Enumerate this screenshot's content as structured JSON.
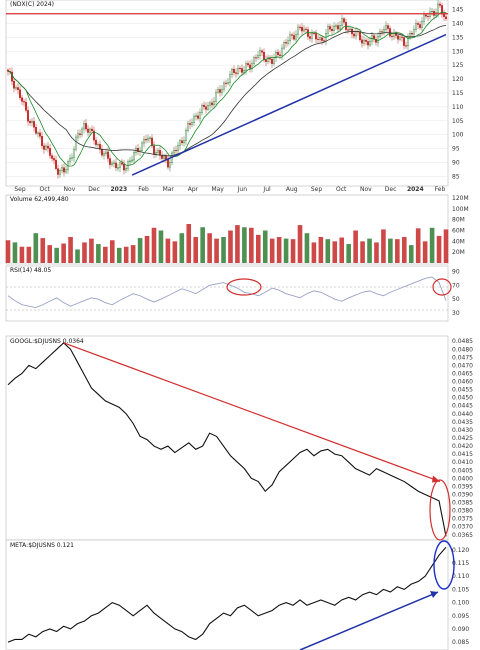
{
  "panels": {
    "price": {
      "top_label": "(NDX(C) 2024)",
      "y_ticks": [
        "145",
        "140",
        "135",
        "130",
        "125",
        "120",
        "115",
        "110",
        "105",
        "100",
        "95",
        "90",
        "85"
      ]
    },
    "x_axis": {
      "ticks": [
        "Sep",
        "Oct",
        "Nov",
        "Dec",
        "2023",
        "Feb",
        "Mar",
        "Apr",
        "May",
        "Jun",
        "Jul",
        "Aug",
        "Sep",
        "Oct",
        "Nov",
        "Dec",
        "2024",
        "Feb"
      ]
    },
    "volume": {
      "label": "Volume 62,499,480",
      "y_ticks": [
        "120M",
        "100M",
        "80M",
        "60M",
        "40M",
        "20M"
      ]
    },
    "rsi": {
      "label": "RSI(14) 48.05",
      "y_ticks": [
        "90",
        "70",
        "50",
        "30"
      ]
    },
    "ratio_googl": {
      "label": "GOOGL:$DJUSNS 0.0364",
      "y_ticks": [
        "0.0485",
        "0.0480",
        "0.0475",
        "0.0470",
        "0.0465",
        "0.0460",
        "0.0455",
        "0.0450",
        "0.0445",
        "0.0440",
        "0.0435",
        "0.0430",
        "0.0425",
        "0.0420",
        "0.0415",
        "0.0410",
        "0.0405",
        "0.0400",
        "0.0395",
        "0.0390",
        "0.0385",
        "0.0380",
        "0.0375",
        "0.0370",
        "0.0365"
      ]
    },
    "ratio_meta": {
      "label": "META:$DJUSNS 0.121",
      "y_ticks": [
        "0.120",
        "0.115",
        "0.110",
        "0.105",
        "0.100",
        "0.095",
        "0.090",
        "0.085"
      ]
    }
  },
  "colors": {
    "up": "#2e7d32",
    "down": "#c62828",
    "ma_fast": "#1b8a2a",
    "ma_slow": "#333333",
    "trend_blue": "#2233aa",
    "trend_red": "#d32f2f",
    "highlight_red": "#d32f2f",
    "highlight_blue": "#1a2fd1",
    "grid": "#e6e6e6"
  },
  "chart_data": [
    {
      "type": "candlestick",
      "title": "",
      "ylim": [
        83,
        147
      ],
      "x": [
        "Sep",
        "Oct",
        "Nov",
        "Dec",
        "2023",
        "Feb",
        "Mar",
        "Apr",
        "May",
        "Jun",
        "Jul",
        "Aug",
        "Sep",
        "Oct",
        "Nov",
        "Dec",
        "2024",
        "Feb"
      ],
      "close_path": [
        122,
        118,
        112,
        106,
        101,
        97,
        93,
        88,
        86,
        92,
        99,
        104,
        100,
        96,
        92,
        90,
        88,
        89,
        92,
        96,
        99,
        95,
        92,
        90,
        94,
        98,
        103,
        107,
        109,
        111,
        114,
        118,
        121,
        124,
        123,
        126,
        129,
        128,
        126,
        130,
        133,
        136,
        138,
        137,
        135,
        134,
        137,
        139,
        140,
        138,
        136,
        134,
        133,
        135,
        138,
        137,
        135,
        133,
        136,
        140,
        142,
        144,
        146,
        141
      ],
      "horizontal_level": 143.5,
      "trendlines": [
        {
          "name": "blue support",
          "from": [
            "2023",
            85.5
          ],
          "to": [
            "Feb",
            136
          ]
        }
      ]
    },
    {
      "type": "bar",
      "title": "Volume 62,499,480",
      "ylim": [
        0,
        120000000
      ],
      "values": [
        42,
        38,
        30,
        30,
        55,
        46,
        33,
        28,
        36,
        48,
        25,
        38,
        45,
        35,
        30,
        42,
        28,
        30,
        33,
        46,
        50,
        65,
        60,
        45,
        40,
        55,
        72,
        48,
        66,
        55,
        45,
        48,
        60,
        70,
        66,
        65,
        52,
        60,
        45,
        48,
        45,
        44,
        70,
        55,
        38,
        48,
        44,
        40,
        47,
        35,
        60,
        40,
        45,
        38,
        62,
        45,
        44,
        48,
        33,
        64,
        40,
        65,
        50,
        62
      ]
    },
    {
      "type": "line",
      "title": "RSI(14) 48.05",
      "ylim": [
        20,
        95
      ],
      "reference_lines": [
        70,
        30
      ],
      "values": [
        55,
        48,
        42,
        40,
        38,
        42,
        47,
        52,
        45,
        40,
        44,
        48,
        52,
        50,
        45,
        42,
        48,
        53,
        58,
        55,
        50,
        46,
        50,
        55,
        60,
        65,
        62,
        58,
        64,
        70,
        72,
        74,
        70,
        66,
        60,
        58,
        55,
        60,
        66,
        63,
        58,
        55,
        52,
        58,
        62,
        60,
        55,
        50,
        47,
        52,
        56,
        60,
        62,
        58,
        55,
        60,
        64,
        68,
        72,
        76,
        80,
        82,
        74,
        48
      ]
    },
    {
      "type": "line",
      "title": "GOOGL:$DJUSNS 0.0364",
      "ylim": [
        0.0363,
        0.0487
      ],
      "values": [
        0.0458,
        0.0462,
        0.0465,
        0.047,
        0.0468,
        0.0472,
        0.0476,
        0.048,
        0.0484,
        0.048,
        0.0472,
        0.0464,
        0.0456,
        0.0452,
        0.0448,
        0.0446,
        0.0444,
        0.044,
        0.0434,
        0.0426,
        0.0424,
        0.042,
        0.0418,
        0.042,
        0.0416,
        0.0419,
        0.0422,
        0.0418,
        0.042,
        0.0428,
        0.0426,
        0.042,
        0.0414,
        0.041,
        0.0406,
        0.04,
        0.0398,
        0.0392,
        0.0396,
        0.0404,
        0.0408,
        0.0412,
        0.0416,
        0.0418,
        0.0414,
        0.0417,
        0.0418,
        0.0415,
        0.0414,
        0.041,
        0.0406,
        0.0404,
        0.0402,
        0.0406,
        0.0404,
        0.0402,
        0.04,
        0.0398,
        0.0395,
        0.0392,
        0.039,
        0.0388,
        0.0386,
        0.0364
      ],
      "trendline": {
        "from": [
          0.0484
        ],
        "to": [
          0.0398
        ]
      }
    },
    {
      "type": "line",
      "title": "META:$DJUSNS 0.121",
      "ylim": [
        0.082,
        0.123
      ],
      "values": [
        0.085,
        0.086,
        0.086,
        0.088,
        0.087,
        0.089,
        0.09,
        0.089,
        0.091,
        0.09,
        0.092,
        0.093,
        0.095,
        0.096,
        0.098,
        0.1,
        0.099,
        0.097,
        0.095,
        0.097,
        0.099,
        0.096,
        0.094,
        0.092,
        0.09,
        0.089,
        0.087,
        0.086,
        0.088,
        0.092,
        0.094,
        0.096,
        0.095,
        0.098,
        0.099,
        0.097,
        0.095,
        0.096,
        0.097,
        0.099,
        0.1,
        0.099,
        0.101,
        0.099,
        0.1,
        0.101,
        0.1,
        0.099,
        0.101,
        0.102,
        0.101,
        0.103,
        0.104,
        0.103,
        0.105,
        0.104,
        0.106,
        0.105,
        0.107,
        0.108,
        0.11,
        0.114,
        0.118,
        0.121
      ],
      "trendline": {
        "from": [
          0.082
        ],
        "to": [
          0.104
        ]
      }
    }
  ]
}
